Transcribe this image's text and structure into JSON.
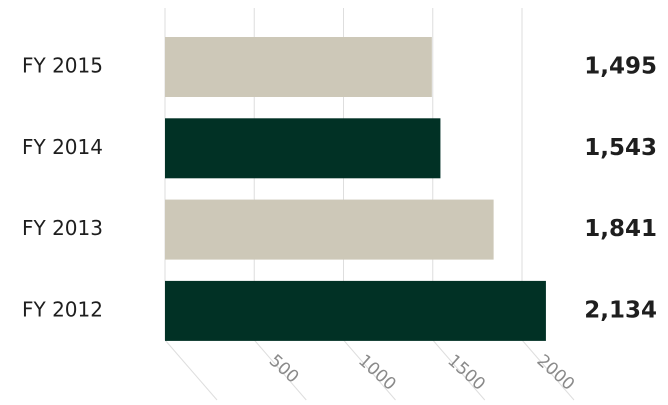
{
  "chart_data": {
    "type": "bar",
    "orientation": "horizontal",
    "categories": [
      "FY 2015",
      "FY 2014",
      "FY 2013",
      "FY 2012"
    ],
    "values": [
      1495,
      1543,
      1841,
      2134
    ],
    "value_labels": [
      "1,495",
      "1,543",
      "1,841",
      "2,134"
    ],
    "bar_colors": [
      "#cdc8b8",
      "#013125",
      "#cdc8b8",
      "#013125"
    ],
    "x_ticks": [
      0,
      500,
      1000,
      1500,
      2000
    ],
    "x_tick_labels": [
      "",
      "500",
      "1000",
      "1500",
      "2000"
    ],
    "xlim": [
      0,
      2150
    ],
    "title": "",
    "xlabel": "",
    "ylabel": "",
    "grid": true,
    "legend": "none"
  }
}
